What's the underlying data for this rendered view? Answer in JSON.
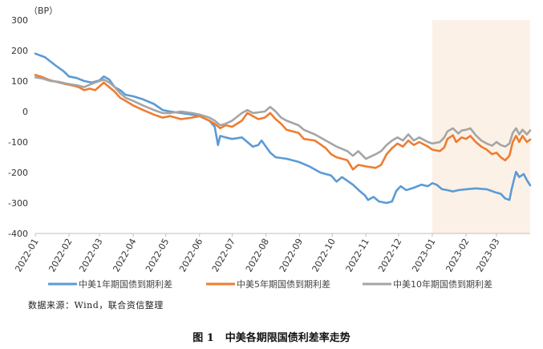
{
  "chart_data": {
    "type": "line",
    "unit": "（BP）",
    "ylim": [
      -400,
      300
    ],
    "yticks": [
      300,
      200,
      100,
      0,
      -100,
      -200,
      -300,
      -400
    ],
    "x_start": "2022-01-01",
    "x_end": "2023-04-01",
    "xticks": [
      "2022-01",
      "2022-02",
      "2022-03",
      "2022-04",
      "2022-05",
      "2022-06",
      "2022-07",
      "2022-08",
      "2022-09",
      "2022-10",
      "2022-11",
      "2022-12",
      "2023-01",
      "2023-02",
      "2023-03"
    ],
    "highlight": {
      "from": "2023-01-01",
      "to": "2023-04-01",
      "color": "#fcf1e6"
    },
    "grid": false,
    "legend_position": "bottom",
    "series": [
      {
        "name": "中美1年期国债到期利差",
        "color": "#5b9bd5",
        "points": [
          [
            "2022-01-01",
            190
          ],
          [
            "2022-01-10",
            178
          ],
          [
            "2022-01-20",
            150
          ],
          [
            "2022-01-27",
            132
          ],
          [
            "2022-02-01",
            115
          ],
          [
            "2022-02-08",
            110
          ],
          [
            "2022-02-15",
            100
          ],
          [
            "2022-02-22",
            95
          ],
          [
            "2022-03-01",
            102
          ],
          [
            "2022-03-05",
            115
          ],
          [
            "2022-03-10",
            105
          ],
          [
            "2022-03-15",
            80
          ],
          [
            "2022-03-20",
            70
          ],
          [
            "2022-03-25",
            55
          ],
          [
            "2022-04-01",
            50
          ],
          [
            "2022-04-10",
            40
          ],
          [
            "2022-04-20",
            25
          ],
          [
            "2022-04-28",
            5
          ],
          [
            "2022-05-05",
            0
          ],
          [
            "2022-05-15",
            -5
          ],
          [
            "2022-05-25",
            -10
          ],
          [
            "2022-06-01",
            -15
          ],
          [
            "2022-06-10",
            -30
          ],
          [
            "2022-06-15",
            -50
          ],
          [
            "2022-06-18",
            -110
          ],
          [
            "2022-06-20",
            -80
          ],
          [
            "2022-06-25",
            -85
          ],
          [
            "2022-07-01",
            -90
          ],
          [
            "2022-07-10",
            -85
          ],
          [
            "2022-07-15",
            -100
          ],
          [
            "2022-07-20",
            -115
          ],
          [
            "2022-07-25",
            -110
          ],
          [
            "2022-07-28",
            -95
          ],
          [
            "2022-08-01",
            -115
          ],
          [
            "2022-08-05",
            -135
          ],
          [
            "2022-08-10",
            -150
          ],
          [
            "2022-08-20",
            -155
          ],
          [
            "2022-08-31",
            -165
          ],
          [
            "2022-09-10",
            -180
          ],
          [
            "2022-09-20",
            -200
          ],
          [
            "2022-09-30",
            -210
          ],
          [
            "2022-10-05",
            -230
          ],
          [
            "2022-10-10",
            -215
          ],
          [
            "2022-10-20",
            -240
          ],
          [
            "2022-10-26",
            -260
          ],
          [
            "2022-10-31",
            -275
          ],
          [
            "2022-11-03",
            -290
          ],
          [
            "2022-11-08",
            -280
          ],
          [
            "2022-11-13",
            -295
          ],
          [
            "2022-11-20",
            -300
          ],
          [
            "2022-11-25",
            -295
          ],
          [
            "2022-11-29",
            -260
          ],
          [
            "2022-12-03",
            -245
          ],
          [
            "2022-12-08",
            -258
          ],
          [
            "2022-12-15",
            -250
          ],
          [
            "2022-12-22",
            -240
          ],
          [
            "2022-12-28",
            -245
          ],
          [
            "2023-01-01",
            -235
          ],
          [
            "2023-01-05",
            -240
          ],
          [
            "2023-01-10",
            -255
          ],
          [
            "2023-01-15",
            -258
          ],
          [
            "2023-01-20",
            -262
          ],
          [
            "2023-01-25",
            -258
          ],
          [
            "2023-02-01",
            -255
          ],
          [
            "2023-02-10",
            -252
          ],
          [
            "2023-02-20",
            -255
          ],
          [
            "2023-02-28",
            -265
          ],
          [
            "2023-03-05",
            -270
          ],
          [
            "2023-03-09",
            -285
          ],
          [
            "2023-03-13",
            -290
          ],
          [
            "2023-03-15",
            -255
          ],
          [
            "2023-03-17",
            -225
          ],
          [
            "2023-03-19",
            -198
          ],
          [
            "2023-03-22",
            -215
          ],
          [
            "2023-03-26",
            -205
          ],
          [
            "2023-03-29",
            -225
          ],
          [
            "2023-04-01",
            -242
          ]
        ]
      },
      {
        "name": "中美5年期国债到期利差",
        "color": "#ed7d31",
        "points": [
          [
            "2022-01-01",
            120
          ],
          [
            "2022-01-08",
            112
          ],
          [
            "2022-01-15",
            102
          ],
          [
            "2022-01-22",
            96
          ],
          [
            "2022-01-29",
            90
          ],
          [
            "2022-02-05",
            85
          ],
          [
            "2022-02-10",
            80
          ],
          [
            "2022-02-15",
            70
          ],
          [
            "2022-02-20",
            75
          ],
          [
            "2022-02-25",
            70
          ],
          [
            "2022-03-01",
            82
          ],
          [
            "2022-03-05",
            95
          ],
          [
            "2022-03-10",
            80
          ],
          [
            "2022-03-15",
            65
          ],
          [
            "2022-03-20",
            45
          ],
          [
            "2022-03-25",
            35
          ],
          [
            "2022-04-01",
            20
          ],
          [
            "2022-04-10",
            5
          ],
          [
            "2022-04-20",
            -10
          ],
          [
            "2022-04-28",
            -20
          ],
          [
            "2022-05-05",
            -15
          ],
          [
            "2022-05-15",
            -25
          ],
          [
            "2022-05-25",
            -20
          ],
          [
            "2022-06-01",
            -15
          ],
          [
            "2022-06-10",
            -30
          ],
          [
            "2022-06-15",
            -40
          ],
          [
            "2022-06-20",
            -55
          ],
          [
            "2022-06-25",
            -45
          ],
          [
            "2022-07-01",
            -50
          ],
          [
            "2022-07-10",
            -30
          ],
          [
            "2022-07-15",
            -5
          ],
          [
            "2022-07-25",
            -25
          ],
          [
            "2022-07-31",
            -20
          ],
          [
            "2022-08-05",
            -5
          ],
          [
            "2022-08-10",
            -25
          ],
          [
            "2022-08-15",
            -40
          ],
          [
            "2022-08-20",
            -60
          ],
          [
            "2022-08-31",
            -70
          ],
          [
            "2022-09-05",
            -90
          ],
          [
            "2022-09-15",
            -95
          ],
          [
            "2022-09-25",
            -120
          ],
          [
            "2022-09-30",
            -140
          ],
          [
            "2022-10-05",
            -150
          ],
          [
            "2022-10-15",
            -160
          ],
          [
            "2022-10-20",
            -190
          ],
          [
            "2022-10-25",
            -175
          ],
          [
            "2022-11-01",
            -180
          ],
          [
            "2022-11-10",
            -185
          ],
          [
            "2022-11-15",
            -175
          ],
          [
            "2022-11-20",
            -140
          ],
          [
            "2022-11-25",
            -120
          ],
          [
            "2022-11-30",
            -105
          ],
          [
            "2022-12-05",
            -115
          ],
          [
            "2022-12-10",
            -95
          ],
          [
            "2022-12-15",
            -110
          ],
          [
            "2022-12-20",
            -100
          ],
          [
            "2022-12-28",
            -115
          ],
          [
            "2023-01-01",
            -125
          ],
          [
            "2023-01-08",
            -130
          ],
          [
            "2023-01-12",
            -118
          ],
          [
            "2023-01-15",
            -90
          ],
          [
            "2023-01-20",
            -78
          ],
          [
            "2023-01-23",
            -100
          ],
          [
            "2023-01-28",
            -85
          ],
          [
            "2023-02-01",
            -90
          ],
          [
            "2023-02-05",
            -80
          ],
          [
            "2023-02-10",
            -100
          ],
          [
            "2023-02-15",
            -115
          ],
          [
            "2023-02-20",
            -125
          ],
          [
            "2023-02-25",
            -140
          ],
          [
            "2023-03-01",
            -135
          ],
          [
            "2023-03-05",
            -150
          ],
          [
            "2023-03-09",
            -160
          ],
          [
            "2023-03-13",
            -145
          ],
          [
            "2023-03-16",
            -100
          ],
          [
            "2023-03-19",
            -80
          ],
          [
            "2023-03-22",
            -100
          ],
          [
            "2023-03-25",
            -80
          ],
          [
            "2023-03-29",
            -100
          ],
          [
            "2023-04-01",
            -92
          ]
        ]
      },
      {
        "name": "中美10年期国债到期利差",
        "color": "#a5a5a5",
        "points": [
          [
            "2022-01-01",
            112
          ],
          [
            "2022-01-08",
            108
          ],
          [
            "2022-01-15",
            100
          ],
          [
            "2022-01-22",
            98
          ],
          [
            "2022-01-29",
            92
          ],
          [
            "2022-02-05",
            88
          ],
          [
            "2022-02-10",
            85
          ],
          [
            "2022-02-15",
            80
          ],
          [
            "2022-02-20",
            88
          ],
          [
            "2022-02-25",
            95
          ],
          [
            "2022-03-01",
            100
          ],
          [
            "2022-03-05",
            105
          ],
          [
            "2022-03-10",
            95
          ],
          [
            "2022-03-15",
            80
          ],
          [
            "2022-03-20",
            60
          ],
          [
            "2022-03-25",
            45
          ],
          [
            "2022-04-01",
            35
          ],
          [
            "2022-04-10",
            20
          ],
          [
            "2022-04-20",
            5
          ],
          [
            "2022-04-28",
            -5
          ],
          [
            "2022-05-05",
            -5
          ],
          [
            "2022-05-15",
            0
          ],
          [
            "2022-05-25",
            -5
          ],
          [
            "2022-06-01",
            -10
          ],
          [
            "2022-06-10",
            -20
          ],
          [
            "2022-06-15",
            -30
          ],
          [
            "2022-06-20",
            -45
          ],
          [
            "2022-06-25",
            -40
          ],
          [
            "2022-07-01",
            -30
          ],
          [
            "2022-07-10",
            -5
          ],
          [
            "2022-07-15",
            5
          ],
          [
            "2022-07-20",
            -5
          ],
          [
            "2022-07-31",
            0
          ],
          [
            "2022-08-05",
            15
          ],
          [
            "2022-08-10",
            0
          ],
          [
            "2022-08-15",
            -20
          ],
          [
            "2022-08-20",
            -30
          ],
          [
            "2022-08-31",
            -45
          ],
          [
            "2022-09-05",
            -60
          ],
          [
            "2022-09-15",
            -75
          ],
          [
            "2022-09-25",
            -95
          ],
          [
            "2022-09-30",
            -105
          ],
          [
            "2022-10-05",
            -115
          ],
          [
            "2022-10-15",
            -130
          ],
          [
            "2022-10-20",
            -145
          ],
          [
            "2022-10-25",
            -130
          ],
          [
            "2022-11-01",
            -155
          ],
          [
            "2022-11-10",
            -140
          ],
          [
            "2022-11-15",
            -130
          ],
          [
            "2022-11-20",
            -110
          ],
          [
            "2022-11-25",
            -95
          ],
          [
            "2022-11-30",
            -85
          ],
          [
            "2022-12-05",
            -95
          ],
          [
            "2022-12-10",
            -75
          ],
          [
            "2022-12-15",
            -95
          ],
          [
            "2022-12-20",
            -85
          ],
          [
            "2022-12-28",
            -100
          ],
          [
            "2023-01-01",
            -105
          ],
          [
            "2023-01-08",
            -100
          ],
          [
            "2023-01-12",
            -85
          ],
          [
            "2023-01-15",
            -65
          ],
          [
            "2023-01-20",
            -55
          ],
          [
            "2023-01-25",
            -72
          ],
          [
            "2023-01-28",
            -62
          ],
          [
            "2023-02-01",
            -60
          ],
          [
            "2023-02-05",
            -55
          ],
          [
            "2023-02-10",
            -78
          ],
          [
            "2023-02-15",
            -95
          ],
          [
            "2023-02-20",
            -105
          ],
          [
            "2023-02-25",
            -112
          ],
          [
            "2023-03-01",
            -100
          ],
          [
            "2023-03-05",
            -110
          ],
          [
            "2023-03-09",
            -115
          ],
          [
            "2023-03-13",
            -105
          ],
          [
            "2023-03-16",
            -70
          ],
          [
            "2023-03-19",
            -55
          ],
          [
            "2023-03-22",
            -75
          ],
          [
            "2023-03-25",
            -60
          ],
          [
            "2023-03-29",
            -75
          ],
          [
            "2023-04-01",
            -62
          ]
        ]
      }
    ]
  },
  "source_note": "数据来源：Wind，联合资信整理",
  "caption": {
    "number": "图 1",
    "title": "中美各期限国债利差率走势"
  }
}
